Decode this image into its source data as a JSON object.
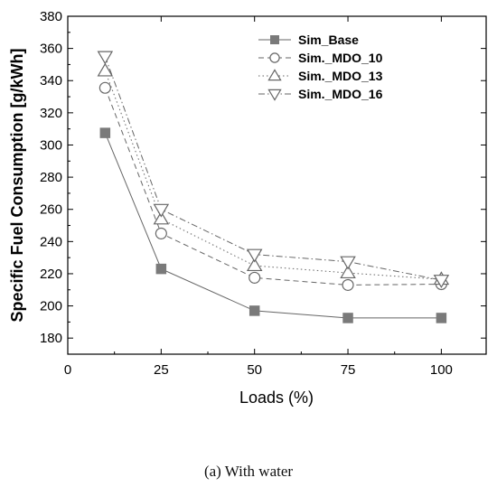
{
  "chart_data": {
    "type": "line",
    "xlabel": "Loads (%)",
    "ylabel": "Specific Fuel Consumption [g/kWh]",
    "xlim": [
      0,
      112
    ],
    "ylim": [
      170,
      380
    ],
    "x_ticks": [
      0,
      25,
      50,
      75,
      100
    ],
    "y_ticks": [
      180,
      200,
      220,
      240,
      260,
      280,
      300,
      320,
      340,
      360,
      380
    ],
    "legend_position": "top-right",
    "grid": false,
    "x": [
      10,
      25,
      50,
      75,
      100
    ],
    "series": [
      {
        "name": "Sim_Base",
        "marker": "square-filled",
        "dash": "solid",
        "values": [
          307.5,
          223,
          197,
          192.5,
          192.5
        ]
      },
      {
        "name": "Sim._MDO_10",
        "marker": "circle-open",
        "dash": "dashed",
        "values": [
          335.5,
          245,
          217.5,
          213,
          213.5
        ]
      },
      {
        "name": "Sim._MDO_13",
        "marker": "triangle-up-open",
        "dash": "dotted",
        "values": [
          346,
          254,
          225,
          220.5,
          216.5
        ]
      },
      {
        "name": "Sim._MDO_16",
        "marker": "triangle-down-open",
        "dash": "dashdot",
        "values": [
          355,
          260,
          232,
          227.5,
          216
        ]
      }
    ]
  },
  "caption": "(a) With water",
  "colors": {
    "line": "#666666",
    "marker_fill": "#7a7a7a",
    "marker_stroke": "#666666",
    "axis": "#000000"
  }
}
